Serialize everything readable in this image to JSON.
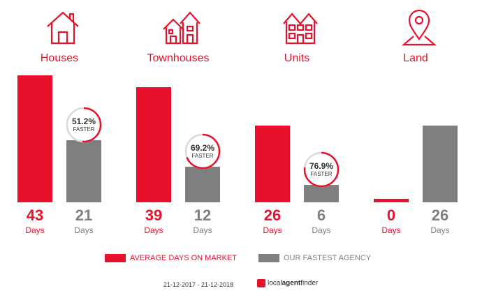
{
  "chart_data": {
    "type": "bar",
    "categories": [
      "Houses",
      "Townhouses",
      "Units",
      "Land"
    ],
    "series": [
      {
        "name": "AVERAGE DAYS ON MARKET",
        "values": [
          43,
          39,
          26,
          0
        ]
      },
      {
        "name": "OUR FASTEST AGENCY",
        "values": [
          21,
          12,
          6,
          26
        ]
      }
    ],
    "unit_label": "Days",
    "faster": [
      {
        "pct": 51.2,
        "text": "51.2%",
        "word": "FASTER"
      },
      {
        "pct": 69.2,
        "text": "69.2%",
        "word": "FASTER"
      },
      {
        "pct": 76.9,
        "text": "76.9%",
        "word": "FASTER"
      },
      null
    ],
    "ylim": [
      0,
      43
    ],
    "legend_placement": "bottom",
    "grid": false
  },
  "icons": [
    "house-icon",
    "townhouse-icon",
    "units-icon",
    "land-pin-icon"
  ],
  "colors": {
    "market": "#e8112d",
    "agency": "#7f7f7f"
  },
  "footer": {
    "date_range": "21-12-2017 - 21-12-2018",
    "logo_text_a": "local",
    "logo_text_b": "agent",
    "logo_text_c": "finder"
  }
}
